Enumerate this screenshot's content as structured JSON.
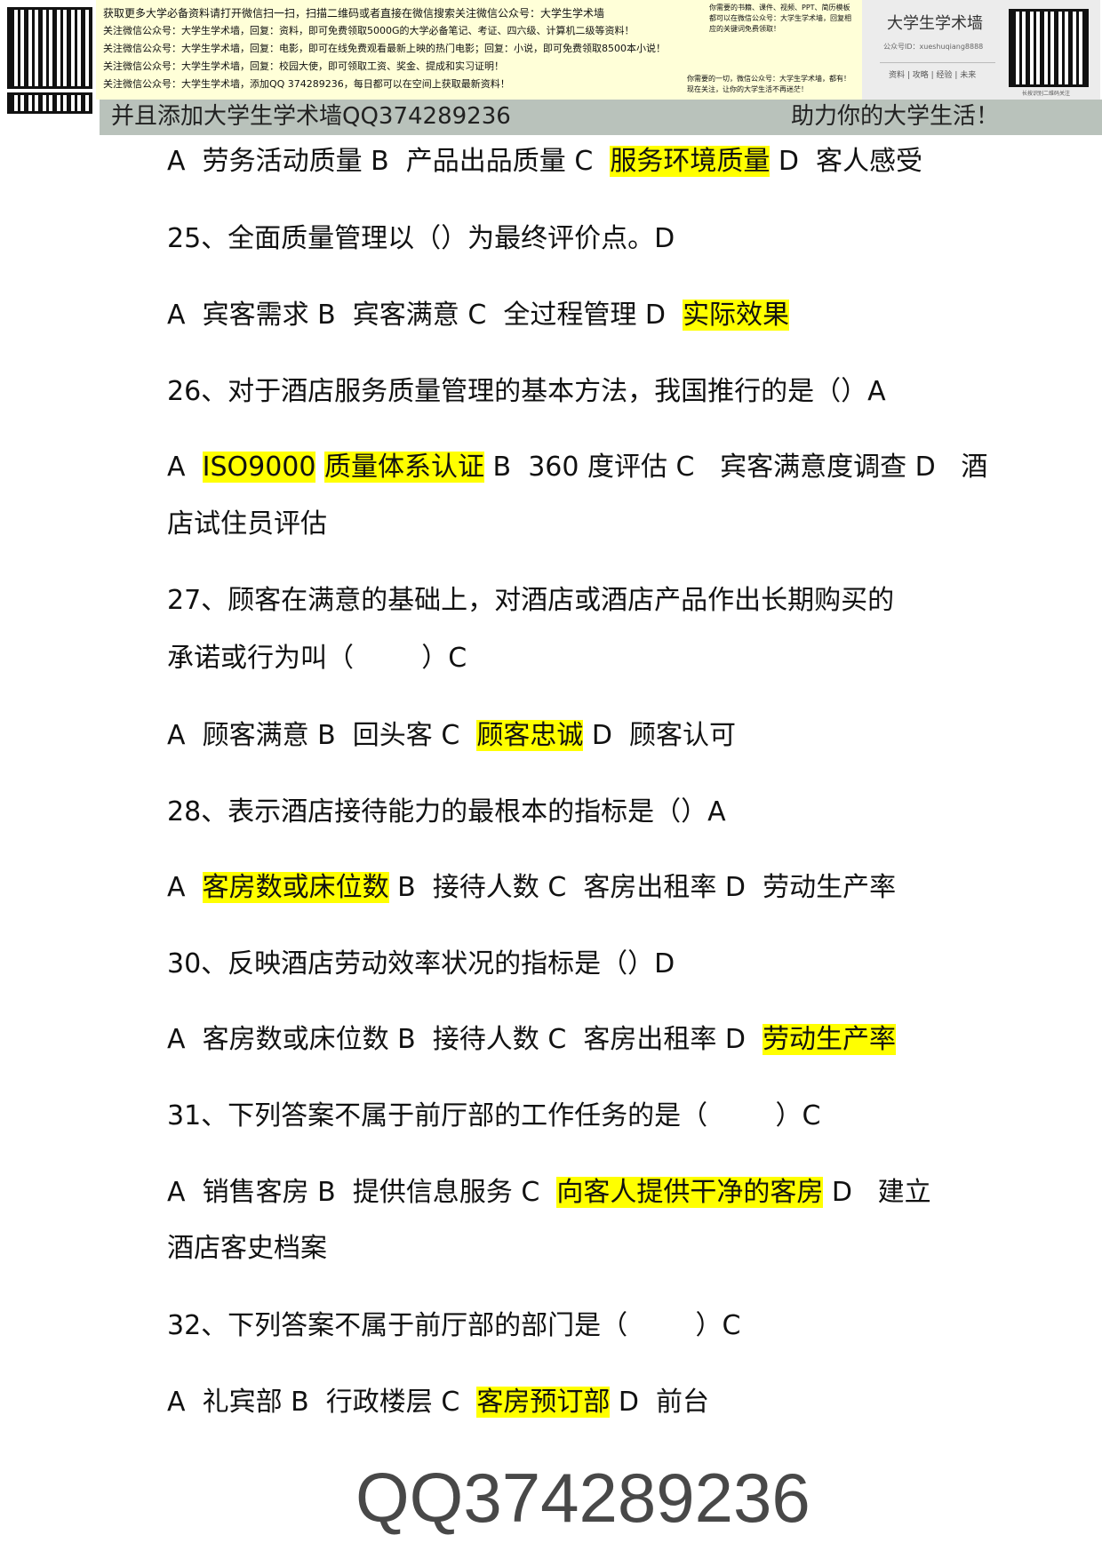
{
  "banner": {
    "lines": [
      "获取更多大学必备资料请打开微信扫一扫，扫描二维码或者直接在微信搜索关注微信公众号：大学生学术墙",
      "关注微信公众号：大学生学术墙，回复：资料，即可免费领取5000G的大学必备笔记、考证、四六级、计算机二级等资料！",
      "关注微信公众号：大学生学术墙，回复：电影，即可在线免费观看最新上映的热门电影；回复：小说，即可免费领取8500本小说！",
      "关注微信公众号：大学生学术墙，回复：校园大使，即可领取工资、奖金、提成和实习证明！",
      "关注微信公众号：大学生学术墙，添加QQ 374289236，每日都可以在空间上获取最新资料！"
    ],
    "side_top": [
      "你需要的书籍、课件、视频、PPT、简历模板",
      "都可以在微信公众号：大学生学术墙，回复相",
      "应的关键词免费领取！"
    ],
    "side_bottom": [
      "你需要的一切，微信公众号：大学生学术墙，都有！",
      "现在关注，让你的大学生活不再迷茫！"
    ],
    "behind_left": "并且添加大学生学术墙QQ374289236",
    "behind_right": "助力你的大学生活！",
    "card": {
      "title": "大学生学术墙",
      "id": "公众号ID：xueshuqiang8888",
      "links": "资料 | 攻略 | 经验 | 未来",
      "caption": "长按识别二维码关注"
    }
  },
  "watermark": "QQ374289236",
  "highlight_color": "#ffff00",
  "lines": [
    [
      {
        "t": "A  劳务活动质量 B  产品出品质量 C  "
      },
      {
        "t": "服务环境质量",
        "hl": true
      },
      {
        "t": " D  客人感受"
      }
    ],
    [
      {
        "t": "25、全面质量管理以（）为最终评价点。D"
      }
    ],
    [
      {
        "t": "A  宾客需求 B  宾客满意 C  全过程管理 D  "
      },
      {
        "t": "实际效果",
        "hl": true
      }
    ],
    [
      {
        "t": "26、对于酒店服务质量管理的基本方法，我国推行的是（）A"
      }
    ],
    [
      {
        "t": "A  "
      },
      {
        "t": "ISO9000",
        "hl": true
      },
      {
        "t": " "
      },
      {
        "t": "质量体系认证",
        "hl": true
      },
      {
        "t": " B  360 度评估 C   宾客满意度调查 D   酒"
      }
    ],
    [
      {
        "t": "店试住员评估"
      }
    ],
    [
      {
        "t": "27、顾客在满意的基础上，对酒店或酒店产品作出长期购买的"
      }
    ],
    [
      {
        "t": "承诺或行为叫（        ）C"
      }
    ],
    [
      {
        "t": "A  顾客满意 B  回头客 C  "
      },
      {
        "t": "顾客忠诚",
        "hl": true
      },
      {
        "t": " D  顾客认可"
      }
    ],
    [
      {
        "t": "28、表示酒店接待能力的最根本的指标是（）A"
      }
    ],
    [
      {
        "t": "A  "
      },
      {
        "t": "客房数或床位数",
        "hl": true
      },
      {
        "t": " B  接待人数 C  客房出租率 D  劳动生产率"
      }
    ],
    [
      {
        "t": "30、反映酒店劳动效率状况的指标是（）D"
      }
    ],
    [
      {
        "t": "A  客房数或床位数 B  接待人数 C  客房出租率 D  "
      },
      {
        "t": "劳动生产率",
        "hl": true
      }
    ],
    [
      {
        "t": "31、下列答案不属于前厅部的工作任务的是（        ）C"
      }
    ],
    [
      {
        "t": "A  销售客房 B  提供信息服务 C  "
      },
      {
        "t": "向客人提供干净的客房",
        "hl": true
      },
      {
        "t": " D   建立"
      }
    ],
    [
      {
        "t": "酒店客史档案"
      }
    ],
    [
      {
        "t": "32、下列答案不属于前厅部的部门是（        ）C"
      }
    ],
    [
      {
        "t": "A  礼宾部 B  行政楼层 C  "
      },
      {
        "t": "客房预订部",
        "hl": true
      },
      {
        "t": " D  前台"
      }
    ]
  ]
}
